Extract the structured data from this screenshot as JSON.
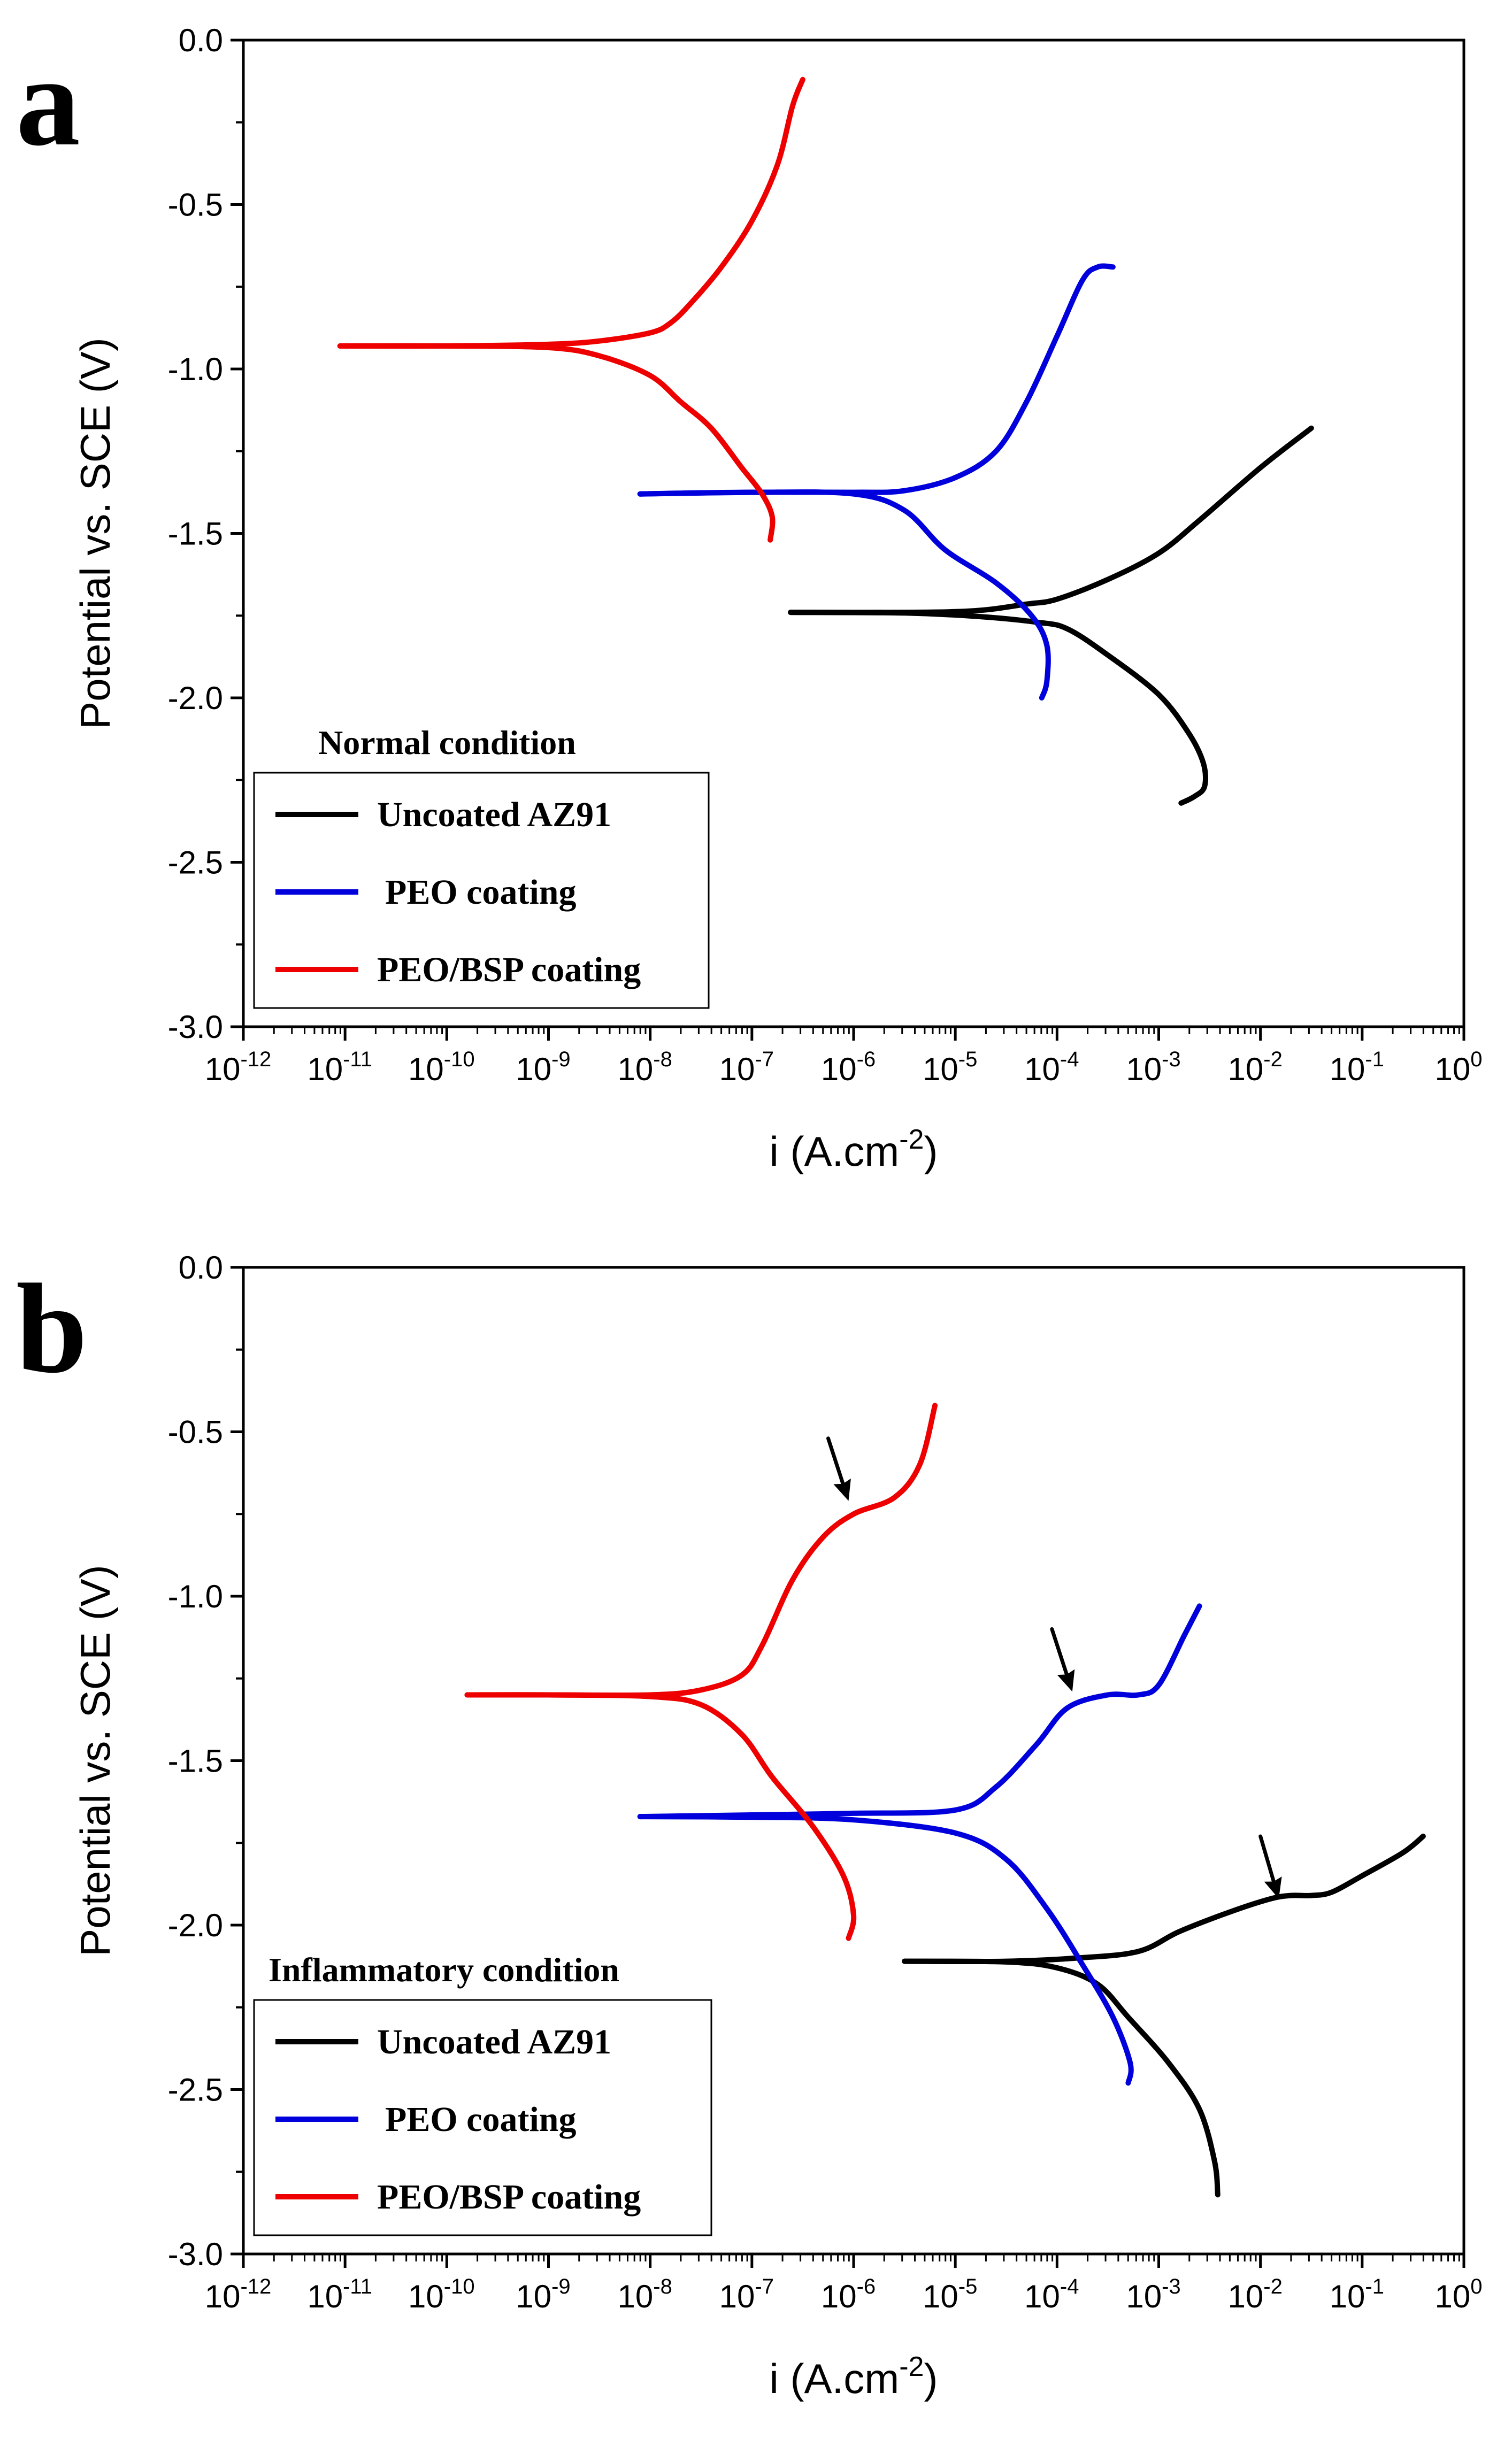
{
  "chart_data": [
    {
      "type": "line",
      "panel_label": "a",
      "condition_title": "Normal condition",
      "xlabel": "i (A.cm",
      "xlabel_sup": "-2",
      "xlabel_close": ")",
      "ylabel": "Potential vs. SCE (V)",
      "xscale": "log",
      "xlim_exp": [
        -12,
        0
      ],
      "xtick_base": "10",
      "xtick_exponents": [
        "-12",
        "-11",
        "-10",
        "-9",
        "-8",
        "-7",
        "-6",
        "-5",
        "-4",
        "-3",
        "-2",
        "-1",
        "0"
      ],
      "ylim": [
        -3.0,
        0.0
      ],
      "ytick_labels": [
        "0.0",
        "-0.5",
        "-1.0",
        "-1.5",
        "-2.0",
        "-2.5",
        "-3.0"
      ],
      "legend": [
        "Uncoated AZ91",
        "PEO coating",
        "PEO/BSP coating"
      ],
      "series": [
        {
          "name": "Uncoated AZ91",
          "color": "#000000",
          "segments": [
            [
              [
                -6.62,
                -1.74
              ],
              [
                -5.5,
                -1.74
              ],
              [
                -4.8,
                -1.735
              ],
              [
                -4.3,
                -1.715
              ],
              [
                -4.0,
                -1.7
              ],
              [
                -3.5,
                -1.64
              ],
              [
                -3.0,
                -1.56
              ],
              [
                -2.6,
                -1.46
              ],
              [
                -2.0,
                -1.3
              ],
              [
                -1.5,
                -1.18
              ]
            ],
            [
              [
                -6.62,
                -1.74
              ],
              [
                -5.5,
                -1.742
              ],
              [
                -4.8,
                -1.752
              ],
              [
                -4.2,
                -1.77
              ],
              [
                -3.9,
                -1.79
              ],
              [
                -3.5,
                -1.87
              ],
              [
                -3.0,
                -1.99
              ],
              [
                -2.7,
                -2.11
              ],
              [
                -2.56,
                -2.2
              ],
              [
                -2.55,
                -2.27
              ],
              [
                -2.65,
                -2.3
              ],
              [
                -2.78,
                -2.32
              ]
            ]
          ]
        },
        {
          "name": "PEO coating",
          "color": "#0000dd",
          "segments": [
            [
              [
                -8.1,
                -1.38
              ],
              [
                -7.0,
                -1.375
              ],
              [
                -6.0,
                -1.375
              ],
              [
                -5.5,
                -1.37
              ],
              [
                -5.0,
                -1.33
              ],
              [
                -4.6,
                -1.25
              ],
              [
                -4.3,
                -1.1
              ],
              [
                -4.0,
                -0.9
              ],
              [
                -3.75,
                -0.73
              ],
              [
                -3.6,
                -0.69
              ],
              [
                -3.45,
                -0.69
              ]
            ],
            [
              [
                -8.1,
                -1.38
              ],
              [
                -7.0,
                -1.375
              ],
              [
                -6.0,
                -1.38
              ],
              [
                -5.5,
                -1.43
              ],
              [
                -5.1,
                -1.55
              ],
              [
                -4.6,
                -1.65
              ],
              [
                -4.25,
                -1.75
              ],
              [
                -4.1,
                -1.84
              ],
              [
                -4.1,
                -1.95
              ],
              [
                -4.15,
                -2.0
              ]
            ]
          ]
        },
        {
          "name": "PEO/BSP coating",
          "color": "#ee0000",
          "segments": [
            [
              [
                -11.05,
                -0.93
              ],
              [
                -10.0,
                -0.93
              ],
              [
                -9.0,
                -0.925
              ],
              [
                -8.5,
                -0.915
              ],
              [
                -8.0,
                -0.89
              ],
              [
                -7.8,
                -0.86
              ],
              [
                -7.6,
                -0.8
              ],
              [
                -7.3,
                -0.69
              ],
              [
                -7.0,
                -0.55
              ],
              [
                -6.75,
                -0.38
              ],
              [
                -6.6,
                -0.2
              ],
              [
                -6.5,
                -0.12
              ]
            ],
            [
              [
                -11.05,
                -0.93
              ],
              [
                -10.0,
                -0.93
              ],
              [
                -9.0,
                -0.935
              ],
              [
                -8.5,
                -0.96
              ],
              [
                -8.0,
                -1.02
              ],
              [
                -7.7,
                -1.1
              ],
              [
                -7.4,
                -1.18
              ],
              [
                -7.1,
                -1.3
              ],
              [
                -6.9,
                -1.38
              ],
              [
                -6.8,
                -1.45
              ],
              [
                -6.82,
                -1.52
              ]
            ]
          ]
        }
      ]
    },
    {
      "type": "line",
      "panel_label": "b",
      "condition_title": "Inflammatory condition",
      "xlabel": "i (A.cm",
      "xlabel_sup": "-2",
      "xlabel_close": ")",
      "ylabel": "Potential vs. SCE (V)",
      "xscale": "log",
      "xlim_exp": [
        -12,
        0
      ],
      "xtick_base": "10",
      "xtick_exponents": [
        "-12",
        "-11",
        "-10",
        "-9",
        "-8",
        "-7",
        "-6",
        "-5",
        "-4",
        "-3",
        "-2",
        "-1",
        "0"
      ],
      "ylim": [
        -3.0,
        0.0
      ],
      "ytick_labels": [
        "0.0",
        "-0.5",
        "-1.0",
        "-1.5",
        "-2.0",
        "-2.5",
        "-3.0"
      ],
      "legend": [
        "Uncoated AZ91",
        "PEO coating",
        "PEO/BSP coating"
      ],
      "series": [
        {
          "name": "Uncoated AZ91",
          "color": "#000000",
          "segments": [
            [
              [
                -5.5,
                -2.11
              ],
              [
                -4.5,
                -2.11
              ],
              [
                -3.8,
                -2.1
              ],
              [
                -3.2,
                -2.08
              ],
              [
                -2.8,
                -2.02
              ],
              [
                -2.3,
                -1.96
              ],
              [
                -1.9,
                -1.92
              ],
              [
                -1.7,
                -1.91
              ],
              [
                -1.5,
                -1.91
              ],
              [
                -1.3,
                -1.9
              ],
              [
                -1.0,
                -1.85
              ],
              [
                -0.6,
                -1.78
              ],
              [
                -0.4,
                -1.73
              ]
            ],
            [
              [
                -5.5,
                -2.11
              ],
              [
                -4.5,
                -2.112
              ],
              [
                -4.0,
                -2.13
              ],
              [
                -3.6,
                -2.18
              ],
              [
                -3.3,
                -2.28
              ],
              [
                -2.9,
                -2.42
              ],
              [
                -2.6,
                -2.56
              ],
              [
                -2.45,
                -2.72
              ],
              [
                -2.42,
                -2.82
              ]
            ]
          ]
        },
        {
          "name": "PEO coating",
          "color": "#0000dd",
          "segments": [
            [
              [
                -8.1,
                -1.67
              ],
              [
                -7.0,
                -1.665
              ],
              [
                -6.0,
                -1.66
              ],
              [
                -5.0,
                -1.65
              ],
              [
                -4.6,
                -1.58
              ],
              [
                -4.2,
                -1.45
              ],
              [
                -3.9,
                -1.34
              ],
              [
                -3.5,
                -1.3
              ],
              [
                -3.2,
                -1.3
              ],
              [
                -3.0,
                -1.27
              ],
              [
                -2.75,
                -1.12
              ],
              [
                -2.6,
                -1.03
              ]
            ],
            [
              [
                -8.1,
                -1.67
              ],
              [
                -7.0,
                -1.672
              ],
              [
                -6.0,
                -1.68
              ],
              [
                -5.0,
                -1.72
              ],
              [
                -4.5,
                -1.8
              ],
              [
                -4.1,
                -1.95
              ],
              [
                -3.75,
                -2.12
              ],
              [
                -3.45,
                -2.28
              ],
              [
                -3.28,
                -2.42
              ],
              [
                -3.3,
                -2.48
              ]
            ]
          ]
        },
        {
          "name": "PEO/BSP coating",
          "color": "#ee0000",
          "segments": [
            [
              [
                -9.8,
                -1.3
              ],
              [
                -9.0,
                -1.3
              ],
              [
                -8.0,
                -1.3
              ],
              [
                -7.5,
                -1.285
              ],
              [
                -7.1,
                -1.24
              ],
              [
                -6.9,
                -1.15
              ],
              [
                -6.6,
                -0.95
              ],
              [
                -6.3,
                -0.82
              ],
              [
                -6.0,
                -0.75
              ],
              [
                -5.6,
                -0.7
              ],
              [
                -5.35,
                -0.6
              ],
              [
                -5.2,
                -0.42
              ]
            ],
            [
              [
                -9.8,
                -1.3
              ],
              [
                -9.0,
                -1.3
              ],
              [
                -8.0,
                -1.305
              ],
              [
                -7.5,
                -1.33
              ],
              [
                -7.1,
                -1.42
              ],
              [
                -6.8,
                -1.55
              ],
              [
                -6.4,
                -1.7
              ],
              [
                -6.1,
                -1.85
              ],
              [
                -6.0,
                -1.97
              ],
              [
                -6.05,
                -2.04
              ]
            ]
          ]
        }
      ],
      "annotations": [
        {
          "type": "arrow",
          "from": [
            -6.25,
            -0.52
          ],
          "to": [
            -6.05,
            -0.71
          ]
        },
        {
          "type": "arrow",
          "from": [
            -4.05,
            -1.1
          ],
          "to": [
            -3.85,
            -1.29
          ]
        },
        {
          "type": "arrow",
          "from": [
            -2.0,
            -1.73
          ],
          "to": [
            -1.82,
            -1.92
          ]
        }
      ]
    }
  ]
}
